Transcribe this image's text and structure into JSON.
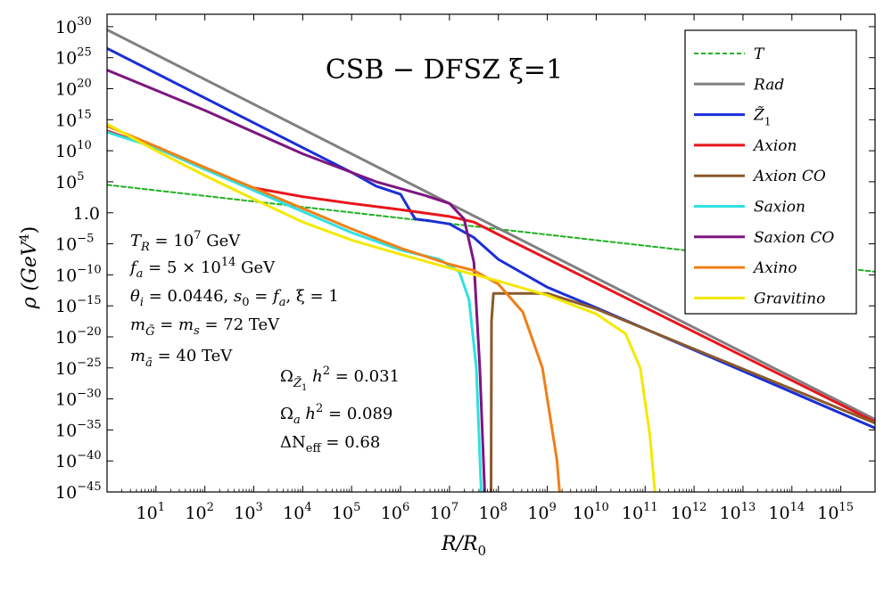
{
  "chart_data": {
    "type": "line",
    "title": "CSB − DFSZ ξ=1",
    "xlabel": "R/R",
    "xlabel_sub": "0",
    "ylabel": "ρ (GeV",
    "ylabel_sup": "4",
    "ylabel_close": ")",
    "x_scale": "log10",
    "y_scale": "log10",
    "xlim_log10": [
      0,
      15.7
    ],
    "ylim_log10": [
      -45,
      32
    ],
    "x_ticks": [
      {
        "base": "10",
        "exp": "1",
        "log10": 1
      },
      {
        "base": "10",
        "exp": "2",
        "log10": 2
      },
      {
        "base": "10",
        "exp": "3",
        "log10": 3
      },
      {
        "base": "10",
        "exp": "4",
        "log10": 4
      },
      {
        "base": "10",
        "exp": "5",
        "log10": 5
      },
      {
        "base": "10",
        "exp": "6",
        "log10": 6
      },
      {
        "base": "10",
        "exp": "7",
        "log10": 7
      },
      {
        "base": "10",
        "exp": "8",
        "log10": 8
      },
      {
        "base": "10",
        "exp": "9",
        "log10": 9
      },
      {
        "base": "10",
        "exp": "10",
        "log10": 10
      },
      {
        "base": "10",
        "exp": "11",
        "log10": 11
      },
      {
        "base": "10",
        "exp": "12",
        "log10": 12
      },
      {
        "base": "10",
        "exp": "13",
        "log10": 13
      },
      {
        "base": "10",
        "exp": "14",
        "log10": 14
      },
      {
        "base": "10",
        "exp": "15",
        "log10": 15
      }
    ],
    "y_ticks": [
      {
        "base": "10",
        "exp": "30",
        "log10": 30
      },
      {
        "base": "10",
        "exp": "25",
        "log10": 25
      },
      {
        "base": "10",
        "exp": "20",
        "log10": 20
      },
      {
        "base": "10",
        "exp": "15",
        "log10": 15
      },
      {
        "base": "10",
        "exp": "10",
        "log10": 10
      },
      {
        "base": "10",
        "exp": "5",
        "log10": 5
      },
      {
        "base": "1.0",
        "exp": "",
        "log10": 0
      },
      {
        "base": "10",
        "exp": "−5",
        "log10": -5
      },
      {
        "base": "10",
        "exp": "−10",
        "log10": -10
      },
      {
        "base": "10",
        "exp": "−15",
        "log10": -15
      },
      {
        "base": "10",
        "exp": "−20",
        "log10": -20
      },
      {
        "base": "10",
        "exp": "−25",
        "log10": -25
      },
      {
        "base": "10",
        "exp": "−30",
        "log10": -30
      },
      {
        "base": "10",
        "exp": "−35",
        "log10": -35
      },
      {
        "base": "10",
        "exp": "−40",
        "log10": -40
      },
      {
        "base": "10",
        "exp": "−45",
        "log10": -45
      }
    ],
    "legend_position": "top-right",
    "grid": false,
    "series": [
      {
        "name": "T",
        "color": "#22b022",
        "dashed": true,
        "points_log10": [
          [
            0,
            4.5
          ],
          [
            15.7,
            -9.5
          ]
        ]
      },
      {
        "name": "Rad",
        "color": "#808080",
        "dashed": false,
        "points_log10": [
          [
            0,
            29.5
          ],
          [
            15.7,
            -33.3
          ]
        ]
      },
      {
        "name": "Z̃",
        "name_sub": "1",
        "color": "#1a2fd6",
        "dashed": false,
        "points_log10": [
          [
            0,
            26.5
          ],
          [
            3,
            14.5
          ],
          [
            5,
            6.5
          ],
          [
            5.5,
            4.3
          ],
          [
            6.0,
            3.0
          ],
          [
            6.2,
            0.3
          ],
          [
            6.3,
            -1.0
          ],
          [
            6.6,
            -1.3
          ],
          [
            7.0,
            -1.8
          ],
          [
            7.5,
            -4.0
          ],
          [
            8,
            -7.5
          ],
          [
            9,
            -12.0
          ],
          [
            10,
            -15.3
          ],
          [
            15.7,
            -34.7
          ]
        ]
      },
      {
        "name": "Axion",
        "color": "#e8151b",
        "dashed": false,
        "points_log10": [
          [
            0,
            13.2
          ],
          [
            1,
            10.5
          ],
          [
            2,
            7.0
          ],
          [
            3,
            4.0
          ],
          [
            4,
            2.6
          ],
          [
            5,
            1.5
          ],
          [
            6,
            0.5
          ],
          [
            7,
            -0.6
          ],
          [
            7.5,
            -1.5
          ],
          [
            8,
            -3.5
          ],
          [
            15.7,
            -33.7
          ]
        ]
      },
      {
        "name": "Axion CO",
        "color": "#8b5a2b",
        "dashed": false,
        "points_log10": [
          [
            7.85,
            -45
          ],
          [
            7.86,
            -17.5
          ],
          [
            7.9,
            -13.0
          ],
          [
            8.2,
            -13.0
          ],
          [
            9,
            -13.0
          ],
          [
            10,
            -15.5
          ],
          [
            15.7,
            -33.9
          ]
        ]
      },
      {
        "name": "Saxion",
        "color": "#2fe0e0",
        "dashed": false,
        "points_log10": [
          [
            0,
            13.0
          ],
          [
            1,
            10.5
          ],
          [
            2,
            7.0
          ],
          [
            3,
            3.6
          ],
          [
            4,
            0.2
          ],
          [
            5,
            -3.2
          ],
          [
            6,
            -6.0
          ],
          [
            6.8,
            -7.5
          ],
          [
            7.2,
            -9.5
          ],
          [
            7.4,
            -14.0
          ],
          [
            7.55,
            -25.0
          ],
          [
            7.65,
            -45.0
          ]
        ]
      },
      {
        "name": "Saxion CO",
        "color": "#7d1680",
        "dashed": false,
        "points_log10": [
          [
            0,
            23.0
          ],
          [
            2,
            16.5
          ],
          [
            4,
            9.5
          ],
          [
            5.5,
            5.0
          ],
          [
            6.5,
            2.8
          ],
          [
            7.0,
            1.5
          ],
          [
            7.3,
            -1.0
          ],
          [
            7.5,
            -8.0
          ],
          [
            7.62,
            -25.0
          ],
          [
            7.72,
            -45.0
          ]
        ]
      },
      {
        "name": "Axino",
        "color": "#f07f17",
        "dashed": false,
        "points_log10": [
          [
            0,
            14.0
          ],
          [
            1,
            10.7
          ],
          [
            2,
            7.3
          ],
          [
            3,
            4.0
          ],
          [
            4,
            0.7
          ],
          [
            5,
            -2.6
          ],
          [
            6,
            -5.7
          ],
          [
            7,
            -8.3
          ],
          [
            7.5,
            -9.3
          ],
          [
            8,
            -11.5
          ],
          [
            8.5,
            -16.0
          ],
          [
            8.9,
            -25.0
          ],
          [
            9.2,
            -40.0
          ],
          [
            9.25,
            -45.0
          ]
        ]
      },
      {
        "name": "Gravitino",
        "color": "#f5e800",
        "dashed": false,
        "points_log10": [
          [
            0,
            14.3
          ],
          [
            1,
            10.0
          ],
          [
            2,
            6.0
          ],
          [
            3,
            2.2
          ],
          [
            4,
            -1.5
          ],
          [
            5,
            -4.4
          ],
          [
            6,
            -6.7
          ],
          [
            7,
            -8.9
          ],
          [
            8,
            -11.0
          ],
          [
            9,
            -13.3
          ],
          [
            10,
            -16.3
          ],
          [
            10.6,
            -19.5
          ],
          [
            10.9,
            -25.0
          ],
          [
            11.1,
            -36.0
          ],
          [
            11.2,
            -45.0
          ]
        ]
      }
    ]
  },
  "annotations": {
    "tr": {
      "sym": "T",
      "sub": "R",
      "val": " = 10",
      "exp": "7",
      "unit": " GeV"
    },
    "fa": {
      "sym": "f",
      "sub": "a",
      "val": " = 5 × 10",
      "exp": "14",
      "unit": " GeV"
    },
    "theta": {
      "sym": "θ",
      "sub": "i",
      "val": " = 0.0446,  ",
      "s": "s",
      "s_sub": "0",
      "eq": " = ",
      "f": "f",
      "f_sub": "a",
      "xi": ",  ξ = 1"
    },
    "mg": {
      "sym": "m",
      "sub": "G̃",
      "mid": " = ",
      "sym2": "m",
      "sub2": "s",
      "val": "  = 72 TeV"
    },
    "ma": {
      "sym": "m",
      "sub": "ã",
      "val": " = 40 TeV"
    },
    "omega_z": {
      "sym": "Ω",
      "sub": "Z̃",
      "subsub": "1",
      "h": " h",
      "exp": "2",
      "val": " =  0.031"
    },
    "omega_a": {
      "sym": "Ω",
      "sub": "a",
      "h": " h",
      "exp": "2",
      "val": "  =  0.089"
    },
    "neff": {
      "sym": "ΔN",
      "sub": "eff",
      "val": "  =  0.68"
    }
  }
}
